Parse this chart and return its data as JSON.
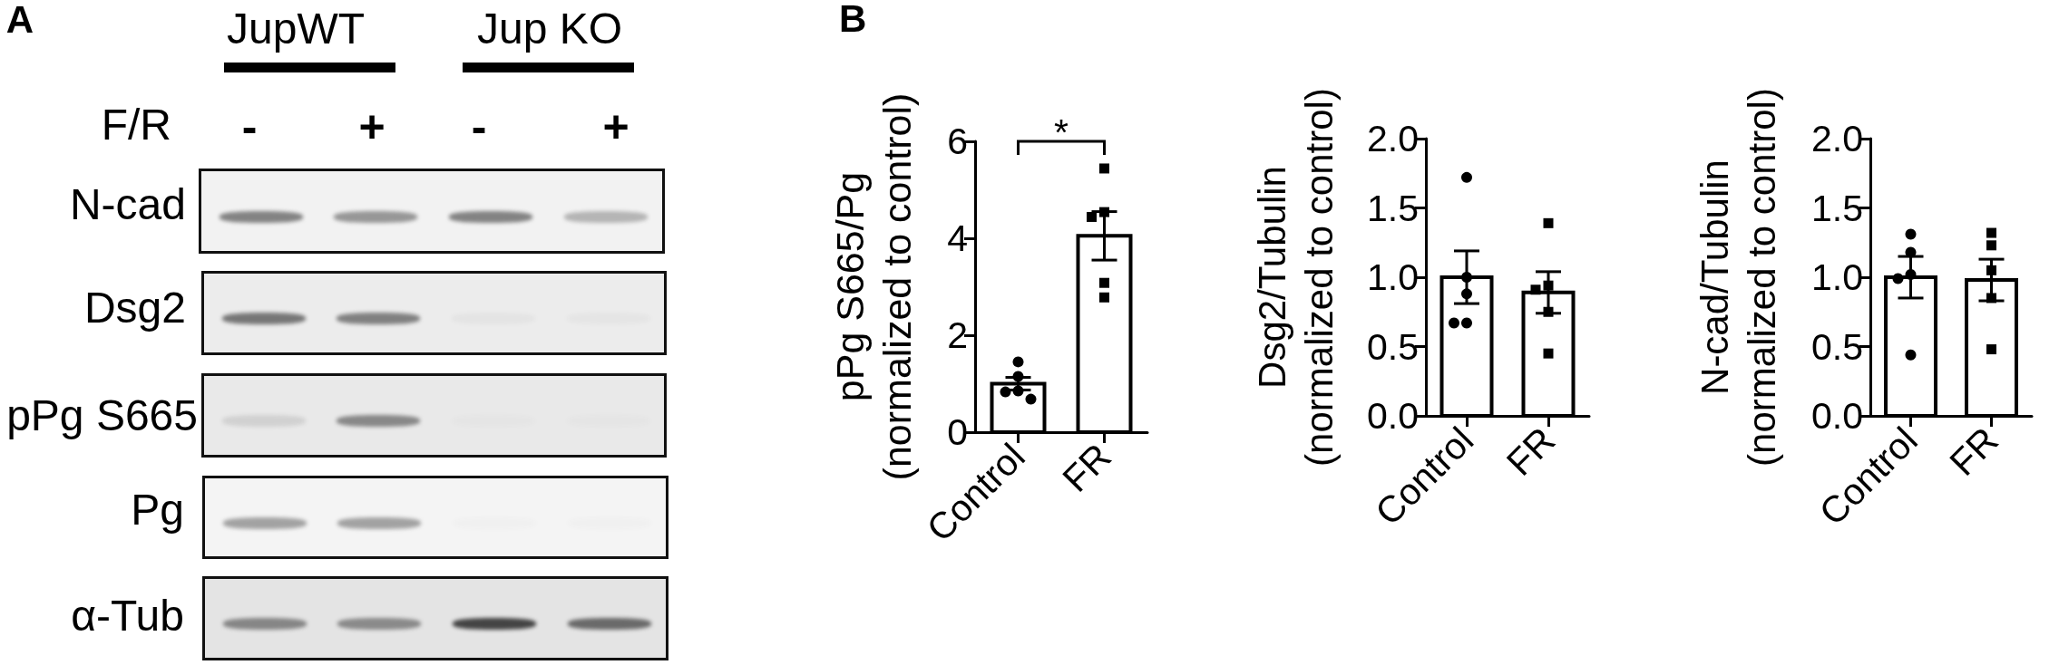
{
  "chart_data": [
    {
      "type": "other",
      "title": "A",
      "annotations": [
        "JupWT",
        "Jup KO",
        "F/R",
        "-",
        "+",
        "-",
        "+",
        "N-cad",
        "Dsg2",
        "pPg S665",
        "Pg",
        "α-Tub"
      ]
    },
    {
      "type": "bar",
      "title": "B",
      "ylabel": "pPg S665/Pg\n(normalized to control)",
      "categories": [
        "Control",
        "FR"
      ],
      "ylim": [
        0,
        6
      ],
      "yticks": [
        0,
        2,
        4,
        6
      ],
      "annotations": [
        "*"
      ],
      "series": [
        {
          "type": "bar",
          "color": "#ffffff",
          "values": [
            1.0,
            4.05
          ],
          "errors": [
            0.13,
            0.5
          ]
        },
        {
          "type": "scatter",
          "color": "#000000",
          "marker": "circle",
          "x": [
            "Control",
            "Control",
            "Control",
            "Control",
            "Control"
          ],
          "values": [
            1.45,
            1.15,
            0.85,
            0.83,
            0.68
          ]
        },
        {
          "type": "scatter",
          "color": "#000000",
          "marker": "square",
          "x": [
            "FR",
            "FR",
            "FR",
            "FR",
            "FR"
          ],
          "values": [
            5.44,
            4.44,
            4.54,
            3.08,
            2.78
          ]
        }
      ]
    },
    {
      "type": "bar",
      "ylabel": "Dsg2/Tubulin\n(normalized to control)",
      "categories": [
        "Control",
        "FR"
      ],
      "ylim": [
        0,
        2
      ],
      "yticks": [
        {
          "value": 0,
          "label": "0.0"
        },
        0.5,
        {
          "value": 1,
          "label": "1.0"
        },
        1.5,
        {
          "value": 2,
          "label": "2.0"
        }
      ],
      "series": [
        {
          "type": "bar",
          "color": "#ffffff",
          "values": [
            1.0,
            0.89
          ],
          "errors": [
            0.19,
            0.15
          ]
        },
        {
          "type": "scatter",
          "color": "#000000",
          "marker": "circle",
          "x": [
            "Control",
            "Control",
            "Control",
            "Control",
            "Control"
          ],
          "values": [
            1.72,
            1.0,
            0.88,
            0.67,
            0.67
          ]
        },
        {
          "type": "scatter",
          "color": "#000000",
          "marker": "square",
          "x": [
            "FR",
            "FR",
            "FR",
            "FR",
            "FR"
          ],
          "values": [
            1.39,
            0.94,
            0.91,
            0.75,
            0.45
          ]
        }
      ]
    },
    {
      "type": "bar",
      "ylabel": "N-cad/Tubulin\n(normalized to control)",
      "categories": [
        "Control",
        "FR"
      ],
      "ylim": [
        0,
        2
      ],
      "yticks": [
        {
          "value": 0,
          "label": "0.0"
        },
        0.5,
        {
          "value": 1,
          "label": "1.0"
        },
        1.5,
        {
          "value": 2,
          "label": "2.0"
        }
      ],
      "series": [
        {
          "type": "bar",
          "color": "#ffffff",
          "values": [
            1.0,
            0.98
          ],
          "errors": [
            0.15,
            0.15
          ]
        },
        {
          "type": "scatter",
          "color": "#000000",
          "marker": "circle",
          "x": [
            "Control",
            "Control",
            "Control",
            "Control",
            "Control"
          ],
          "values": [
            1.31,
            1.18,
            1.02,
            0.99,
            0.44
          ]
        },
        {
          "type": "scatter",
          "color": "#000000",
          "marker": "square",
          "x": [
            "FR",
            "FR",
            "FR",
            "FR",
            "FR"
          ],
          "values": [
            1.32,
            1.23,
            1.05,
            0.85,
            0.48
          ]
        }
      ]
    }
  ]
}
